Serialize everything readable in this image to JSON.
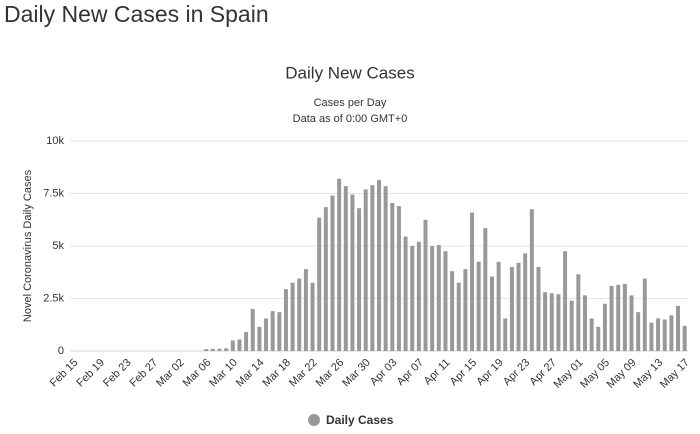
{
  "header": {
    "title": "Daily New Cases in Spain"
  },
  "chart_data": {
    "type": "bar",
    "title": "Daily New Cases",
    "subtitle": "Cases per Day",
    "note": "Data as of 0:00 GMT+0",
    "y_label": "Novel Coronavirus Daily Cases",
    "categories": [
      "Feb 15",
      null,
      null,
      null,
      "Feb 19",
      null,
      null,
      null,
      "Feb 23",
      null,
      null,
      null,
      "Feb 27",
      null,
      null,
      null,
      "Mar 02",
      null,
      null,
      null,
      "Mar 06",
      null,
      null,
      null,
      "Mar 10",
      null,
      null,
      null,
      "Mar 14",
      null,
      null,
      null,
      "Mar 18",
      null,
      null,
      null,
      "Mar 22",
      null,
      null,
      null,
      "Mar 26",
      null,
      null,
      null,
      "Mar 30",
      null,
      null,
      null,
      "Apr 03",
      null,
      null,
      null,
      "Apr 07",
      null,
      null,
      null,
      "Apr 11",
      null,
      null,
      null,
      "Apr 15",
      null,
      null,
      null,
      "Apr 19",
      null,
      null,
      null,
      "Apr 23",
      null,
      null,
      null,
      "Apr 27",
      null,
      null,
      null,
      "May 01",
      null,
      null,
      null,
      "May 05",
      null,
      null,
      null,
      "May 09",
      null,
      null,
      null,
      "May 13",
      null,
      null,
      null,
      "May 17"
    ],
    "series": [
      {
        "name": "Daily Cases",
        "color": "#999999",
        "values": [
          0,
          0,
          0,
          0,
          0,
          0,
          0,
          0,
          0,
          0,
          0,
          0,
          0,
          0,
          0,
          0,
          0,
          0,
          0,
          0,
          90,
          100,
          110,
          130,
          500,
          550,
          900,
          2000,
          1150,
          1550,
          1900,
          1850,
          2950,
          3250,
          3450,
          3900,
          3250,
          6350,
          6850,
          7400,
          8200,
          7850,
          7450,
          6800,
          7700,
          7900,
          8150,
          7850,
          7050,
          6900,
          5450,
          5000,
          5200,
          6250,
          5000,
          5050,
          4750,
          3800,
          3250,
          3900,
          6600,
          4250,
          5850,
          3550,
          4250,
          1550,
          4000,
          4200,
          4650,
          6750,
          4000,
          2800,
          2750,
          2700,
          4750,
          2400,
          3650,
          2650,
          1550,
          1150,
          2250,
          3100,
          3150,
          3200,
          2650,
          1850,
          3450,
          1350,
          1550,
          1500,
          1700,
          2150,
          1200
        ]
      }
    ],
    "ylim": [
      0,
      10000
    ],
    "yticks": [
      0,
      {
        "value": 2500,
        "label": "2.5k"
      },
      {
        "value": 5000,
        "label": "5k"
      },
      {
        "value": 7500,
        "label": "7.5k"
      },
      {
        "value": 10000,
        "label": "10k"
      }
    ],
    "grid": true,
    "legend": "bottom"
  }
}
